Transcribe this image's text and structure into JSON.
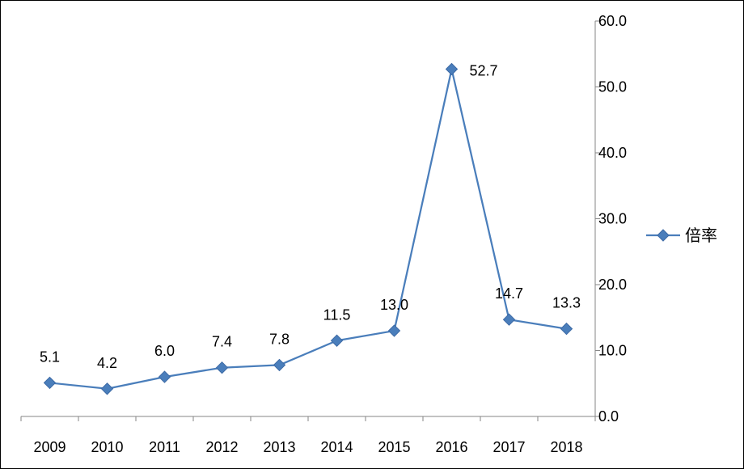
{
  "chart_data": {
    "type": "line",
    "categories": [
      "2009",
      "2010",
      "2011",
      "2012",
      "2013",
      "2014",
      "2015",
      "2016",
      "2017",
      "2018"
    ],
    "series": [
      {
        "name": "倍率",
        "values": [
          5.1,
          4.2,
          6.0,
          7.4,
          7.8,
          11.5,
          13.0,
          52.7,
          14.7,
          13.3
        ],
        "data_labels": [
          "5.1",
          "4.2",
          "6.0",
          "7.4",
          "7.8",
          "11.5",
          "13.0",
          "52.7",
          "14.7",
          "13.3"
        ],
        "color": "#4a7ebb",
        "marker": "diamond"
      }
    ],
    "ylim": [
      0,
      60
    ],
    "y_ticks": [
      "0.0",
      "10.0",
      "20.0",
      "30.0",
      "40.0",
      "50.0",
      "60.0"
    ],
    "y_axis_side": "right",
    "grid": false,
    "legend": {
      "position": "right",
      "entries": [
        "倍率"
      ]
    },
    "title": "",
    "xlabel": "",
    "ylabel": ""
  }
}
